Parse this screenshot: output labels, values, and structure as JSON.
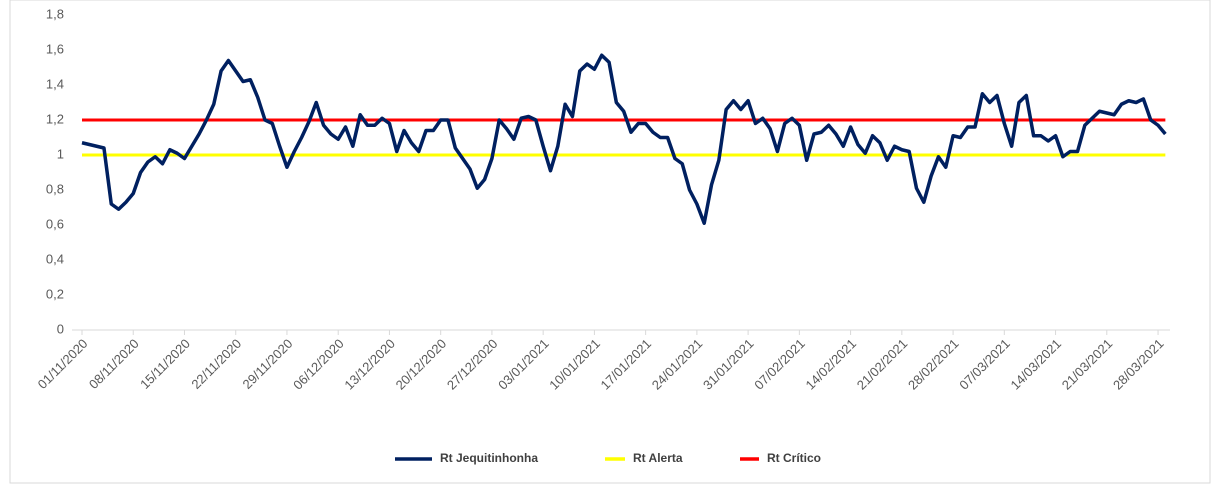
{
  "chart_data": {
    "type": "line",
    "categories": [
      "01/11/2020",
      null,
      null,
      null,
      null,
      null,
      null,
      "08/11/2020",
      null,
      null,
      null,
      null,
      null,
      null,
      "15/11/2020",
      null,
      null,
      null,
      null,
      null,
      null,
      "22/11/2020",
      null,
      null,
      null,
      null,
      null,
      null,
      "29/11/2020",
      null,
      null,
      null,
      null,
      null,
      null,
      "06/12/2020",
      null,
      null,
      null,
      null,
      null,
      null,
      "13/12/2020",
      null,
      null,
      null,
      null,
      null,
      null,
      "20/12/2020",
      null,
      null,
      null,
      null,
      null,
      null,
      "27/12/2020",
      null,
      null,
      null,
      null,
      null,
      null,
      "03/01/2021",
      null,
      null,
      null,
      null,
      null,
      null,
      "10/01/2021",
      null,
      null,
      null,
      null,
      null,
      null,
      "17/01/2021",
      null,
      null,
      null,
      null,
      null,
      null,
      "24/01/2021",
      null,
      null,
      null,
      null,
      null,
      null,
      "31/01/2021",
      null,
      null,
      null,
      null,
      null,
      null,
      "07/02/2021",
      null,
      null,
      null,
      null,
      null,
      null,
      "14/02/2021",
      null,
      null,
      null,
      null,
      null,
      null,
      "21/02/2021",
      null,
      null,
      null,
      null,
      null,
      null,
      "28/02/2021",
      null,
      null,
      null,
      null,
      null,
      null,
      "07/03/2021",
      null,
      null,
      null,
      null,
      null,
      null,
      "14/03/2021",
      null,
      null,
      null,
      null,
      null,
      null,
      "21/03/2021",
      null,
      null,
      null,
      null,
      null,
      null,
      "28/03/2021",
      null
    ],
    "series": [
      {
        "name": "Rt Jequitinhonha",
        "color": "#002060",
        "values": [
          1.07,
          1.06,
          1.05,
          1.04,
          0.72,
          0.69,
          0.73,
          0.78,
          0.9,
          0.96,
          0.99,
          0.95,
          1.03,
          1.01,
          0.98,
          1.05,
          1.12,
          1.2,
          1.29,
          1.48,
          1.54,
          1.48,
          1.42,
          1.43,
          1.33,
          1.2,
          1.18,
          1.05,
          0.93,
          1.02,
          1.1,
          1.19,
          1.3,
          1.17,
          1.12,
          1.09,
          1.16,
          1.05,
          1.23,
          1.17,
          1.17,
          1.21,
          1.18,
          1.02,
          1.14,
          1.07,
          1.02,
          1.14,
          1.14,
          1.2,
          1.2,
          1.04,
          0.98,
          0.92,
          0.81,
          0.86,
          0.98,
          1.2,
          1.15,
          1.09,
          1.21,
          1.22,
          1.2,
          1.05,
          0.91,
          1.05,
          1.29,
          1.22,
          1.48,
          1.52,
          1.49,
          1.57,
          1.53,
          1.3,
          1.25,
          1.13,
          1.18,
          1.18,
          1.13,
          1.1,
          1.1,
          0.98,
          0.95,
          0.8,
          0.72,
          0.61,
          0.83,
          0.97,
          1.26,
          1.31,
          1.26,
          1.31,
          1.18,
          1.21,
          1.15,
          1.02,
          1.18,
          1.21,
          1.17,
          0.97,
          1.12,
          1.13,
          1.17,
          1.12,
          1.05,
          1.16,
          1.06,
          1.01,
          1.11,
          1.07,
          0.97,
          1.05,
          1.03,
          1.02,
          0.81,
          0.73,
          0.88,
          0.99,
          0.93,
          1.11,
          1.1,
          1.16,
          1.16,
          1.35,
          1.3,
          1.34,
          1.18,
          1.05,
          1.3,
          1.34,
          1.11,
          1.11,
          1.08,
          1.11,
          0.99,
          1.02,
          1.02,
          1.17,
          1.21,
          1.25,
          1.24,
          1.23,
          1.29,
          1.31,
          1.3,
          1.32,
          1.2,
          1.17,
          1.12
        ]
      },
      {
        "name": "Rt Alerta",
        "color": "#ffff00",
        "values": [
          1,
          1,
          1,
          1,
          1,
          1,
          1,
          1,
          1,
          1,
          1,
          1,
          1,
          1,
          1,
          1,
          1,
          1,
          1,
          1,
          1,
          1,
          1,
          1,
          1,
          1,
          1,
          1,
          1,
          1,
          1,
          1,
          1,
          1,
          1,
          1,
          1,
          1,
          1,
          1,
          1,
          1,
          1,
          1,
          1,
          1,
          1,
          1,
          1,
          1,
          1,
          1,
          1,
          1,
          1,
          1,
          1,
          1,
          1,
          1,
          1,
          1,
          1,
          1,
          1,
          1,
          1,
          1,
          1,
          1,
          1,
          1,
          1,
          1,
          1,
          1,
          1,
          1,
          1,
          1,
          1,
          1,
          1,
          1,
          1,
          1,
          1,
          1,
          1,
          1,
          1,
          1,
          1,
          1,
          1,
          1,
          1,
          1,
          1,
          1,
          1,
          1,
          1,
          1,
          1,
          1,
          1,
          1,
          1,
          1,
          1,
          1,
          1,
          1,
          1,
          1,
          1,
          1,
          1,
          1,
          1,
          1,
          1,
          1,
          1,
          1,
          1,
          1,
          1,
          1,
          1,
          1,
          1,
          1,
          1,
          1,
          1,
          1,
          1,
          1,
          1,
          1,
          1,
          1,
          1,
          1,
          1,
          1,
          1
        ]
      },
      {
        "name": "Rt Crítico",
        "color": "#ff0000",
        "values": [
          1.2,
          1.2,
          1.2,
          1.2,
          1.2,
          1.2,
          1.2,
          1.2,
          1.2,
          1.2,
          1.2,
          1.2,
          1.2,
          1.2,
          1.2,
          1.2,
          1.2,
          1.2,
          1.2,
          1.2,
          1.2,
          1.2,
          1.2,
          1.2,
          1.2,
          1.2,
          1.2,
          1.2,
          1.2,
          1.2,
          1.2,
          1.2,
          1.2,
          1.2,
          1.2,
          1.2,
          1.2,
          1.2,
          1.2,
          1.2,
          1.2,
          1.2,
          1.2,
          1.2,
          1.2,
          1.2,
          1.2,
          1.2,
          1.2,
          1.2,
          1.2,
          1.2,
          1.2,
          1.2,
          1.2,
          1.2,
          1.2,
          1.2,
          1.2,
          1.2,
          1.2,
          1.2,
          1.2,
          1.2,
          1.2,
          1.2,
          1.2,
          1.2,
          1.2,
          1.2,
          1.2,
          1.2,
          1.2,
          1.2,
          1.2,
          1.2,
          1.2,
          1.2,
          1.2,
          1.2,
          1.2,
          1.2,
          1.2,
          1.2,
          1.2,
          1.2,
          1.2,
          1.2,
          1.2,
          1.2,
          1.2,
          1.2,
          1.2,
          1.2,
          1.2,
          1.2,
          1.2,
          1.2,
          1.2,
          1.2,
          1.2,
          1.2,
          1.2,
          1.2,
          1.2,
          1.2,
          1.2,
          1.2,
          1.2,
          1.2,
          1.2,
          1.2,
          1.2,
          1.2,
          1.2,
          1.2,
          1.2,
          1.2,
          1.2,
          1.2,
          1.2,
          1.2,
          1.2,
          1.2,
          1.2,
          1.2,
          1.2,
          1.2,
          1.2,
          1.2,
          1.2,
          1.2,
          1.2,
          1.2,
          1.2,
          1.2,
          1.2,
          1.2,
          1.2,
          1.2,
          1.2,
          1.2,
          1.2,
          1.2,
          1.2,
          1.2,
          1.2,
          1.2,
          1.2
        ]
      }
    ],
    "ylim": [
      0,
      1.8
    ],
    "yticks": [
      0,
      {
        "value": 0.2,
        "label": "0,2"
      },
      {
        "value": 0.4,
        "label": "0,4"
      },
      {
        "value": 0.6,
        "label": "0,6"
      },
      {
        "value": 0.8,
        "label": "0,8"
      },
      1,
      {
        "value": 1.2,
        "label": "1,2"
      },
      {
        "value": 1.4,
        "label": "1,4"
      },
      {
        "value": 1.6,
        "label": "1,6"
      },
      {
        "value": 1.8,
        "label": "1,8"
      }
    ],
    "grid": false,
    "legend": "bottom"
  }
}
